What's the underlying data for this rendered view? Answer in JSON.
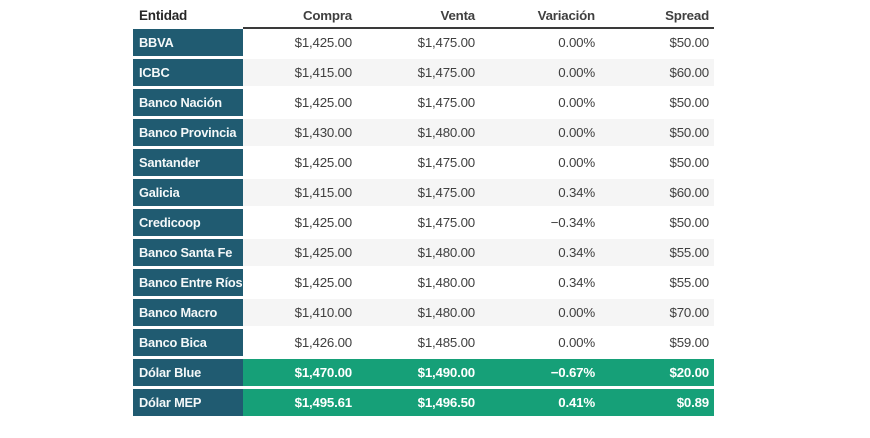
{
  "colors": {
    "teal": "#205b71",
    "green": "#16a078",
    "zebra": "#f5f5f5",
    "header_underline": "#3a3a3a",
    "header_text": "#262626",
    "body_text": "#404040"
  },
  "chart_data": {
    "type": "table",
    "columns": [
      "Entidad",
      "Compra",
      "Venta",
      "Variación",
      "Spread"
    ],
    "rows": [
      {
        "entidad": "BBVA",
        "compra": "$1,425.00",
        "venta": "$1,475.00",
        "variacion": "0.00%",
        "spread": "$50.00",
        "highlight": false
      },
      {
        "entidad": "ICBC",
        "compra": "$1,415.00",
        "venta": "$1,475.00",
        "variacion": "0.00%",
        "spread": "$60.00",
        "highlight": false
      },
      {
        "entidad": "Banco Nación",
        "compra": "$1,425.00",
        "venta": "$1,475.00",
        "variacion": "0.00%",
        "spread": "$50.00",
        "highlight": false
      },
      {
        "entidad": "Banco Provincia",
        "compra": "$1,430.00",
        "venta": "$1,480.00",
        "variacion": "0.00%",
        "spread": "$50.00",
        "highlight": false
      },
      {
        "entidad": "Santander",
        "compra": "$1,425.00",
        "venta": "$1,475.00",
        "variacion": "0.00%",
        "spread": "$50.00",
        "highlight": false
      },
      {
        "entidad": "Galicia",
        "compra": "$1,415.00",
        "venta": "$1,475.00",
        "variacion": "0.34%",
        "spread": "$60.00",
        "highlight": false
      },
      {
        "entidad": "Credicoop",
        "compra": "$1,425.00",
        "venta": "$1,475.00",
        "variacion": "−0.34%",
        "spread": "$50.00",
        "highlight": false
      },
      {
        "entidad": "Banco Santa Fe",
        "compra": "$1,425.00",
        "venta": "$1,480.00",
        "variacion": "0.34%",
        "spread": "$55.00",
        "highlight": false
      },
      {
        "entidad": "Banco Entre Ríos",
        "compra": "$1,425.00",
        "venta": "$1,480.00",
        "variacion": "0.34%",
        "spread": "$55.00",
        "highlight": false
      },
      {
        "entidad": "Banco Macro",
        "compra": "$1,410.00",
        "venta": "$1,480.00",
        "variacion": "0.00%",
        "spread": "$70.00",
        "highlight": false
      },
      {
        "entidad": "Banco Bica",
        "compra": "$1,426.00",
        "venta": "$1,485.00",
        "variacion": "0.00%",
        "spread": "$59.00",
        "highlight": false
      },
      {
        "entidad": "Dólar Blue",
        "compra": "$1,470.00",
        "venta": "$1,490.00",
        "variacion": "−0.67%",
        "spread": "$20.00",
        "highlight": true
      },
      {
        "entidad": "Dólar MEP",
        "compra": "$1,495.61",
        "venta": "$1,496.50",
        "variacion": "0.41%",
        "spread": "$0.89",
        "highlight": true
      }
    ]
  }
}
